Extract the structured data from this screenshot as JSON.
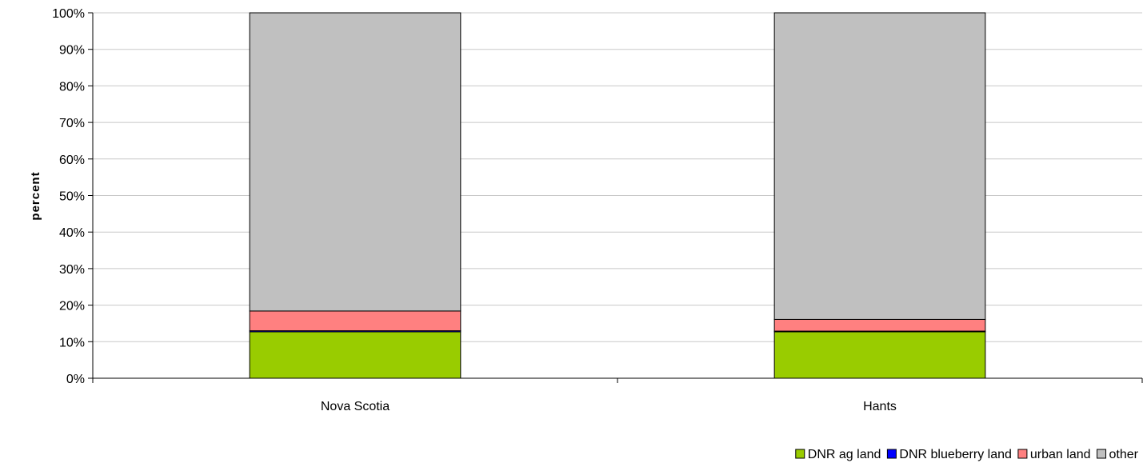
{
  "chart_data": {
    "type": "bar",
    "stacked": true,
    "percent_stacked": true,
    "categories": [
      "Nova Scotia",
      "Hants"
    ],
    "series": [
      {
        "name": "DNR ag land",
        "values": [
          12.7,
          12.7
        ],
        "color": "#99cc00"
      },
      {
        "name": "DNR blueberry land",
        "values": [
          0.3,
          0.2
        ],
        "color": "#0000ff"
      },
      {
        "name": "urban land",
        "values": [
          5.4,
          3.2
        ],
        "color": "#ff8080"
      },
      {
        "name": "other",
        "values": [
          81.6,
          83.9
        ],
        "color": "#c0c0c0"
      }
    ],
    "ylabel": "percent",
    "xlabel": "",
    "ylim": [
      0,
      100
    ],
    "yticks": [
      "0%",
      "10%",
      "20%",
      "30%",
      "40%",
      "50%",
      "60%",
      "70%",
      "80%",
      "90%",
      "100%"
    ],
    "grid": true,
    "legend_position": "bottom-right"
  }
}
